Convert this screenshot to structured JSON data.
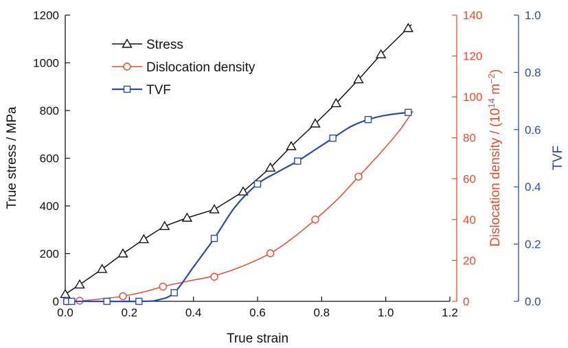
{
  "chart_data": {
    "type": "line",
    "xlabel": "True strain",
    "xlim": [
      0.0,
      1.2
    ],
    "x_ticks": [
      "0.0",
      "0.2",
      "0.4",
      "0.6",
      "0.8",
      "1.0",
      "1.2"
    ],
    "axes": {
      "left": {
        "label": "True stress / MPa",
        "lim": [
          0,
          1200
        ],
        "ticks": [
          "0",
          "200",
          "400",
          "600",
          "800",
          "1000",
          "1200"
        ],
        "color": "#111111"
      },
      "right1": {
        "label_pre": "Dislocation density / (10",
        "label_sup1": "14",
        "label_mid": " m",
        "label_sup2": "−2",
        "label_post": ")",
        "lim": [
          0,
          140
        ],
        "ticks": [
          "0",
          "20",
          "40",
          "60",
          "80",
          "100",
          "120",
          "140"
        ],
        "color": "#e8492a"
      },
      "right2": {
        "label": "TVF",
        "lim": [
          0.0,
          1.0
        ],
        "ticks": [
          "0.0",
          "0.2",
          "0.4",
          "0.6",
          "0.8",
          "1.0"
        ],
        "color": "#2a4aa8"
      }
    },
    "series": [
      {
        "name": "Stress",
        "axis": "left",
        "color": "#111111",
        "marker": "triangle",
        "x": [
          0.0,
          0.045,
          0.115,
          0.18,
          0.245,
          0.31,
          0.38,
          0.465,
          0.555,
          0.64,
          0.705,
          0.78,
          0.845,
          0.915,
          0.985,
          1.07
        ],
        "y": [
          30,
          70,
          135,
          200,
          260,
          315,
          350,
          385,
          460,
          560,
          650,
          745,
          830,
          930,
          1035,
          1145
        ],
        "curve_x": [
          0.0,
          0.045,
          0.115,
          0.18,
          0.245,
          0.31,
          0.38,
          0.465,
          0.555,
          0.64,
          0.705,
          0.78,
          0.845,
          0.915,
          0.985,
          1.08
        ],
        "curve_y": [
          30,
          70,
          135,
          200,
          260,
          315,
          350,
          385,
          460,
          560,
          650,
          745,
          830,
          930,
          1035,
          1160
        ]
      },
      {
        "name": "Dislocation density",
        "axis": "right1",
        "color": "#e8492a",
        "marker": "circle",
        "x": [
          0.005,
          0.045,
          0.18,
          0.305,
          0.465,
          0.64,
          0.78,
          0.915
        ],
        "y": [
          0.0,
          0.3,
          2.5,
          7.2,
          12.0,
          23.5,
          40.0,
          61.0
        ],
        "curve_x": [
          0.0,
          0.05,
          0.1,
          0.18,
          0.25,
          0.305,
          0.38,
          0.465,
          0.55,
          0.64,
          0.71,
          0.78,
          0.85,
          0.915,
          0.98,
          1.04,
          1.085
        ],
        "curve_y": [
          0.0,
          0.3,
          1.0,
          2.5,
          4.8,
          7.2,
          9.8,
          12.5,
          17.0,
          23.5,
          31.0,
          40.0,
          50.0,
          61.0,
          72.0,
          83.0,
          93.0
        ]
      },
      {
        "name": "TVF",
        "axis": "right2",
        "color": "#2a4aa8",
        "marker": "square",
        "x": [
          0.005,
          0.02,
          0.13,
          0.23,
          0.34,
          0.465,
          0.6,
          0.725,
          0.835,
          0.945,
          1.07
        ],
        "y": [
          0.0,
          0.0,
          0.0,
          0.0,
          0.03,
          0.22,
          0.41,
          0.49,
          0.57,
          0.635,
          0.66
        ],
        "curve_x": [
          0.0,
          0.23,
          0.29,
          0.34,
          0.4,
          0.465,
          0.53,
          0.6,
          0.66,
          0.725,
          0.78,
          0.835,
          0.89,
          0.945,
          1.0,
          1.07
        ],
        "curve_y": [
          0.0,
          0.0,
          0.005,
          0.03,
          0.12,
          0.22,
          0.33,
          0.41,
          0.45,
          0.49,
          0.53,
          0.57,
          0.61,
          0.635,
          0.65,
          0.66
        ]
      }
    ],
    "legend": {
      "placement": "top-left",
      "entries": [
        "Stress",
        "Dislocation density",
        "TVF"
      ]
    },
    "grid": false
  }
}
